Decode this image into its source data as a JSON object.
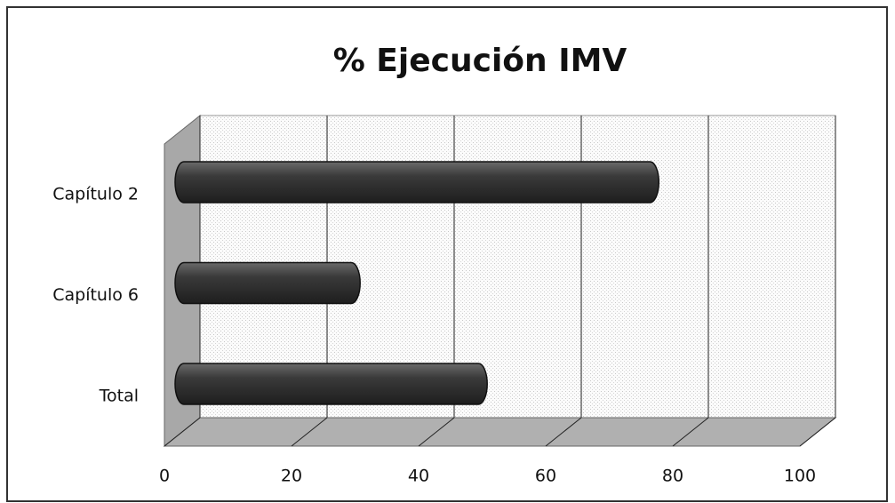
{
  "chart_data": {
    "type": "bar",
    "orientation": "horizontal",
    "title": "% Ejecución IMV",
    "categories": [
      "Capítulo 2",
      "Capítulo 6",
      "Total"
    ],
    "values": [
      75,
      28,
      48
    ],
    "color": "#3a3a3a",
    "xlim": [
      0,
      100
    ],
    "xticks": [
      0,
      20,
      40,
      60,
      80,
      100
    ],
    "grid": true
  }
}
